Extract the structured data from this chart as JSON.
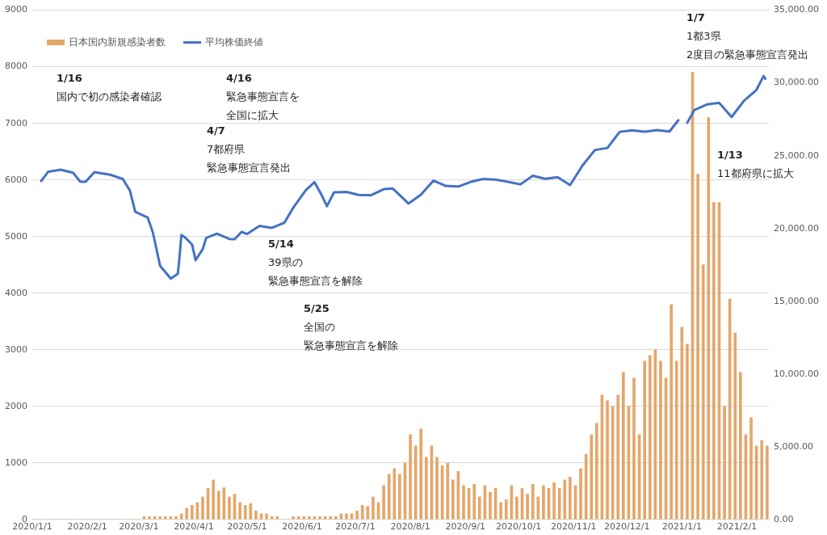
{
  "chart_data": {
    "type": "bar",
    "xlim": [
      "2020-01-01",
      "2021-02-19"
    ],
    "xticks": [
      {
        "value": "2020-01-01",
        "label": "2020/1/1"
      },
      {
        "value": "2020-02-01",
        "label": "2020/2/1"
      },
      {
        "value": "2020-03-01",
        "label": "2020/3/1"
      },
      {
        "value": "2020-04-01",
        "label": "2020/4/1"
      },
      {
        "value": "2020-05-01",
        "label": "2020/5/1"
      },
      {
        "value": "2020-06-01",
        "label": "2020/6/1"
      },
      {
        "value": "2020-07-01",
        "label": "2020/7/1"
      },
      {
        "value": "2020-08-01",
        "label": "2020/8/1"
      },
      {
        "value": "2020-09-01",
        "label": "2020/9/1"
      },
      {
        "value": "2020-10-01",
        "label": "2020/10/1"
      },
      {
        "value": "2020-11-01",
        "label": "2020/11/1"
      },
      {
        "value": "2020-12-01",
        "label": "2020/12/1"
      },
      {
        "value": "2021-01-01",
        "label": "2021/1/1"
      },
      {
        "value": "2021-02-01",
        "label": "2021/2/1"
      }
    ],
    "ylim": [
      0,
      9000
    ],
    "yticks": [
      0,
      1000,
      2000,
      3000,
      4000,
      5000,
      6000,
      7000,
      8000,
      9000
    ],
    "y2lim": [
      0,
      35000
    ],
    "y2ticks": [
      {
        "value": 0,
        "label": "0.00"
      },
      {
        "value": 5000,
        "label": "5,000.00"
      },
      {
        "value": 10000,
        "label": "10,000.00"
      },
      {
        "value": 15000,
        "label": "15,000.00"
      },
      {
        "value": 20000,
        "label": "20,000.00"
      },
      {
        "value": 25000,
        "label": "25,000.00"
      },
      {
        "value": 30000,
        "label": "30,000.00"
      },
      {
        "value": 35000,
        "label": "35,000.00"
      }
    ],
    "grid": "y",
    "legend": "top left",
    "series": [
      {
        "name": "日本国内新規感染者数",
        "color": "#e3a76a",
        "x": [
          "2020-01-01",
          "2020-01-04",
          "2020-01-07",
          "2020-01-10",
          "2020-01-13",
          "2020-01-16",
          "2020-01-19",
          "2020-01-22",
          "2020-01-25",
          "2020-01-28",
          "2020-01-31",
          "2020-02-03",
          "2020-02-06",
          "2020-02-09",
          "2020-02-12",
          "2020-02-15",
          "2020-02-18",
          "2020-02-21",
          "2020-02-24",
          "2020-02-27",
          "2020-03-01",
          "2020-03-04",
          "2020-03-07",
          "2020-03-10",
          "2020-03-13",
          "2020-03-16",
          "2020-03-19",
          "2020-03-22",
          "2020-03-25",
          "2020-03-28",
          "2020-03-31",
          "2020-04-03",
          "2020-04-06",
          "2020-04-09",
          "2020-04-12",
          "2020-04-15",
          "2020-04-18",
          "2020-04-21",
          "2020-04-24",
          "2020-04-27",
          "2020-04-30",
          "2020-05-03",
          "2020-05-06",
          "2020-05-09",
          "2020-05-12",
          "2020-05-15",
          "2020-05-18",
          "2020-05-21",
          "2020-05-24",
          "2020-05-27",
          "2020-05-30",
          "2020-06-02",
          "2020-06-05",
          "2020-06-08",
          "2020-06-11",
          "2020-06-14",
          "2020-06-17",
          "2020-06-20",
          "2020-06-23",
          "2020-06-26",
          "2020-06-29",
          "2020-07-02",
          "2020-07-05",
          "2020-07-08",
          "2020-07-11",
          "2020-07-14",
          "2020-07-17",
          "2020-07-20",
          "2020-07-23",
          "2020-07-26",
          "2020-07-29",
          "2020-08-01",
          "2020-08-04",
          "2020-08-07",
          "2020-08-10",
          "2020-08-13",
          "2020-08-16",
          "2020-08-19",
          "2020-08-22",
          "2020-08-25",
          "2020-08-28",
          "2020-08-31",
          "2020-09-03",
          "2020-09-06",
          "2020-09-09",
          "2020-09-12",
          "2020-09-15",
          "2020-09-18",
          "2020-09-21",
          "2020-09-24",
          "2020-09-27",
          "2020-09-30",
          "2020-10-03",
          "2020-10-06",
          "2020-10-09",
          "2020-10-12",
          "2020-10-15",
          "2020-10-18",
          "2020-10-21",
          "2020-10-24",
          "2020-10-27",
          "2020-10-30",
          "2020-11-02",
          "2020-11-05",
          "2020-11-08",
          "2020-11-11",
          "2020-11-14",
          "2020-11-17",
          "2020-11-20",
          "2020-11-23",
          "2020-11-26",
          "2020-11-29",
          "2020-12-02",
          "2020-12-05",
          "2020-12-08",
          "2020-12-11",
          "2020-12-14",
          "2020-12-17",
          "2020-12-20",
          "2020-12-23",
          "2020-12-26",
          "2020-12-29",
          "2021-01-01",
          "2021-01-04",
          "2021-01-07",
          "2021-01-10",
          "2021-01-13",
          "2021-01-16",
          "2021-01-19",
          "2021-01-22",
          "2021-01-25",
          "2021-01-28",
          "2021-01-31",
          "2021-02-03",
          "2021-02-06",
          "2021-02-09",
          "2021-02-12",
          "2021-02-15",
          "2021-02-18"
        ],
        "values": [
          0,
          0,
          0,
          0,
          0,
          0,
          0,
          0,
          0,
          0,
          0,
          0,
          0,
          0,
          0,
          0,
          0,
          0,
          0,
          0,
          0,
          50,
          50,
          50,
          50,
          50,
          50,
          50,
          100,
          200,
          250,
          300,
          400,
          550,
          700,
          500,
          560,
          400,
          450,
          300,
          250,
          280,
          150,
          100,
          100,
          50,
          50,
          0,
          0,
          50,
          50,
          50,
          50,
          50,
          50,
          50,
          50,
          50,
          100,
          100,
          100,
          150,
          250,
          230,
          400,
          300,
          600,
          800,
          900,
          800,
          1000,
          1500,
          1300,
          1600,
          1100,
          1300,
          1100,
          950,
          1000,
          700,
          850,
          600,
          550,
          620,
          400,
          600,
          480,
          550,
          300,
          350,
          600,
          400,
          550,
          450,
          620,
          400,
          600,
          550,
          650,
          550,
          700,
          750,
          600,
          900,
          1150,
          1500,
          1700,
          2200,
          2100,
          2000,
          2200,
          2600,
          2000,
          2500,
          1500,
          2800,
          2900,
          3000,
          2800,
          2500,
          3800,
          2800,
          3400,
          3100,
          7900,
          6100,
          4500,
          7100,
          5600,
          5600,
          2000,
          3900,
          3300,
          2600,
          1500,
          1800,
          1300,
          1400,
          1300
        ]
      },
      {
        "name": "平均株価終値",
        "type": "line",
        "axis": "y2",
        "color": "#4472c4",
        "x": [
          "2020-01-06",
          "2020-01-10",
          "2020-01-17",
          "2020-01-24",
          "2020-01-28",
          "2020-01-31",
          "2020-02-05",
          "2020-02-14",
          "2020-02-21",
          "2020-02-25",
          "2020-02-28",
          "2020-03-06",
          "2020-03-09",
          "2020-03-13",
          "2020-03-16",
          "2020-03-19",
          "2020-03-23",
          "2020-03-24",
          "2020-03-25",
          "2020-03-27",
          "2020-03-31",
          "2020-04-02",
          "2020-04-06",
          "2020-04-08",
          "2020-04-14",
          "2020-04-21",
          "2020-04-24",
          "2020-04-28",
          "2020-05-01",
          "2020-05-08",
          "2020-05-15",
          "2020-05-22",
          "2020-05-27",
          "2020-06-03",
          "2020-06-08",
          "2020-06-12",
          "2020-06-15",
          "2020-06-19",
          "2020-06-26",
          "2020-07-03",
          "2020-07-10",
          "2020-07-17",
          "2020-07-22",
          "2020-07-31",
          "2020-08-07",
          "2020-08-14",
          "2020-08-21",
          "2020-08-28",
          "2020-09-04",
          "2020-09-11",
          "2020-09-18",
          "2020-09-25",
          "2020-10-02",
          "2020-10-09",
          "2020-10-16",
          "2020-10-23",
          "2020-10-30",
          "2020-11-06",
          "2020-11-13",
          "2020-11-20",
          "2020-11-27",
          "2020-12-04",
          "2020-12-11",
          "2020-12-18",
          "2020-12-25",
          "2020-12-30",
          "2021-01-01",
          "2021-01-04",
          "2021-01-08",
          "2021-01-15",
          "2021-01-22",
          "2021-01-29",
          "2021-02-05",
          "2021-02-12",
          "2021-02-16",
          "2021-02-17"
        ],
        "values": [
          23260,
          23900,
          24040,
          23830,
          23220,
          23200,
          23870,
          23690,
          23400,
          22600,
          21140,
          20750,
          19700,
          17430,
          17000,
          16550,
          16890,
          18090,
          19550,
          19390,
          18900,
          17820,
          18570,
          19350,
          19640,
          19280,
          19260,
          19770,
          19620,
          20180,
          20040,
          20390,
          21420,
          22610,
          23180,
          22300,
          21530,
          22480,
          22510,
          22300,
          22290,
          22700,
          22750,
          21710,
          22330,
          23290,
          22920,
          22880,
          23200,
          23400,
          23360,
          23200,
          23030,
          23620,
          23410,
          23520,
          22980,
          24330,
          25390,
          25530,
          26640,
          26750,
          26650,
          26760,
          26660,
          27440,
          null,
          27260,
          28140,
          28520,
          28630,
          27660,
          28780,
          29520,
          30470,
          30290
        ]
      }
    ],
    "annotations": [
      "1/16",
      "国内で初の感染者確認",
      "4/16",
      "緊急事態宣言を",
      "全国に拡大",
      "4/7",
      "7都府県",
      "緊急事態宣言発出",
      "5/14",
      "39県の",
      "緊急事態宣言を解除",
      "5/25",
      "全国の",
      "緊急事態宣言を解除",
      "1/7",
      "1都3県",
      "2度目の緊急事態宣言発出",
      "1/13",
      "11都府県に拡大"
    ]
  }
}
